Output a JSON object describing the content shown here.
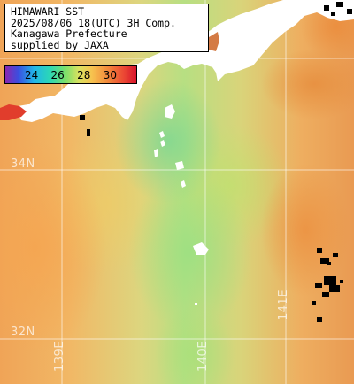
{
  "title": {
    "line1": "HIMAWARI SST",
    "line2": "2025/08/06 18(UTC) 3H Comp.",
    "line3": "Kanagawa Prefecture",
    "line4": "supplied by JAXA"
  },
  "colorbar": {
    "ticks": [
      "24",
      "26",
      "28",
      "30"
    ],
    "unit_range": [
      22,
      32
    ],
    "colors": [
      "#8a26b0",
      "#3a4fe0",
      "#21b6e8",
      "#2bd7b6",
      "#7be06a",
      "#d8e160",
      "#f7c34f",
      "#f28a3c",
      "#ec4a34",
      "#d7142c"
    ]
  },
  "graticule": {
    "lat_labels": [
      "34N",
      "32N"
    ],
    "lon_labels": [
      "139E",
      "140E",
      "141E"
    ]
  },
  "colors": {
    "land": "#ffffff",
    "no_data": "#000000",
    "grid": "#ffffff"
  }
}
